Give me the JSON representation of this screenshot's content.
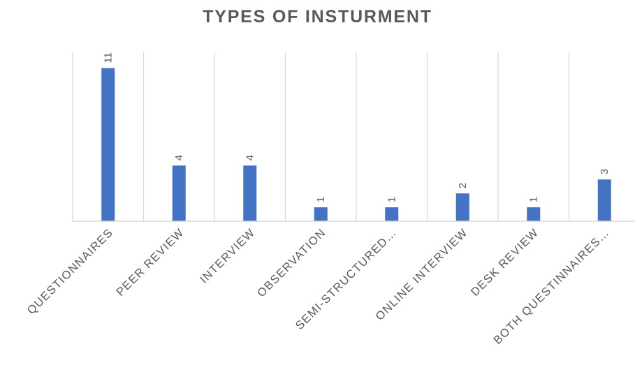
{
  "chart_data": {
    "type": "bar",
    "title": "TYPES OF INSTURMENT",
    "categories": [
      "QUESTIONNAIRES",
      "PEER REVIEW",
      "INTERVIEW",
      "OBSERVATION",
      "SEMI-STRUCTURED…",
      "ONLINE INTERVIEW",
      "DESK REVIEW",
      "BOTH QUESTINNAIRES…"
    ],
    "values": [
      11,
      4,
      4,
      1,
      1,
      2,
      1,
      3
    ],
    "data_labels": [
      "11",
      "4",
      "4",
      "1",
      "1",
      "2",
      "1",
      "3"
    ],
    "xlabel": "",
    "ylabel": "",
    "ylim": [
      0,
      12
    ],
    "grid": "vertical category separators",
    "legend": "none",
    "bar_color": "#4472c4",
    "grid_color": "#d9d9d9",
    "text_color": "#595959"
  }
}
